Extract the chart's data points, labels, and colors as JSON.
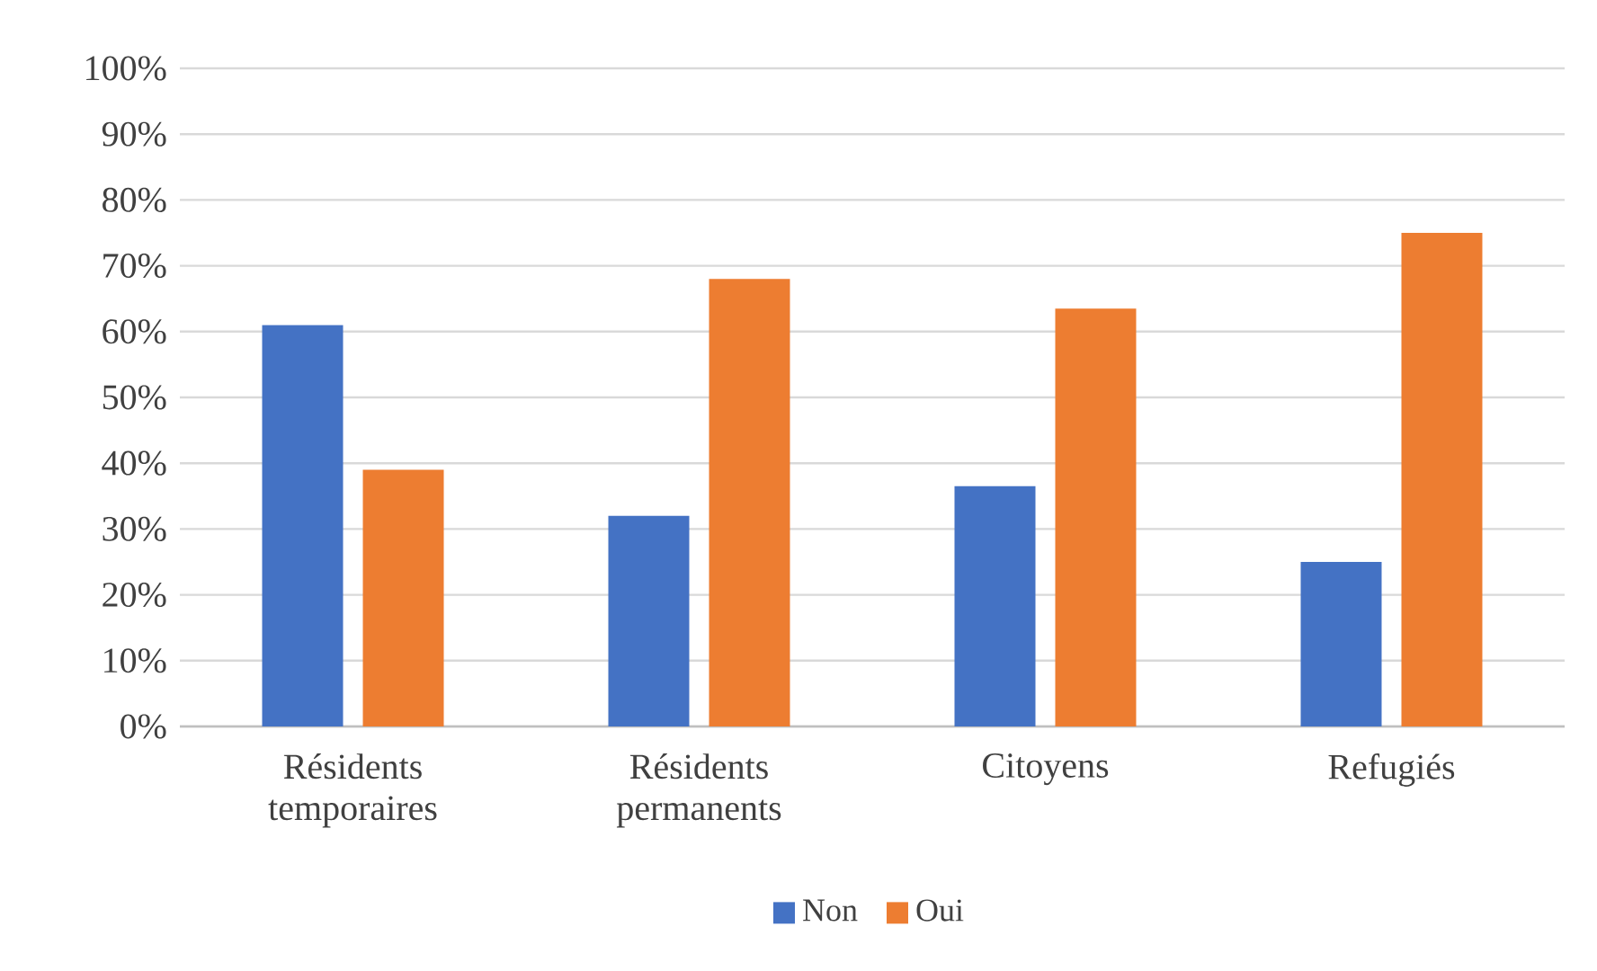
{
  "chart_data": {
    "type": "bar",
    "categories": [
      "Résidents temporaires",
      "Résidents permanents",
      "Citoyens",
      "Refugiés"
    ],
    "series": [
      {
        "name": "Non",
        "color": "#4472c4",
        "values": [
          61,
          32,
          36.5,
          25
        ]
      },
      {
        "name": "Oui",
        "color": "#ed7d31",
        "values": [
          39,
          68,
          63.5,
          75
        ]
      }
    ],
    "ylim": [
      0,
      100
    ],
    "yticks": [
      {
        "value": 0,
        "label": "0%"
      },
      {
        "value": 10,
        "label": "10%"
      },
      {
        "value": 20,
        "label": "20%"
      },
      {
        "value": 30,
        "label": "30%"
      },
      {
        "value": 40,
        "label": "40%"
      },
      {
        "value": 50,
        "label": "50%"
      },
      {
        "value": 60,
        "label": "60%"
      },
      {
        "value": 70,
        "label": "70%"
      },
      {
        "value": 80,
        "label": "80%"
      },
      {
        "value": 90,
        "label": "90%"
      },
      {
        "value": 100,
        "label": "100%"
      }
    ],
    "grid": "y",
    "legend": "bottom"
  }
}
